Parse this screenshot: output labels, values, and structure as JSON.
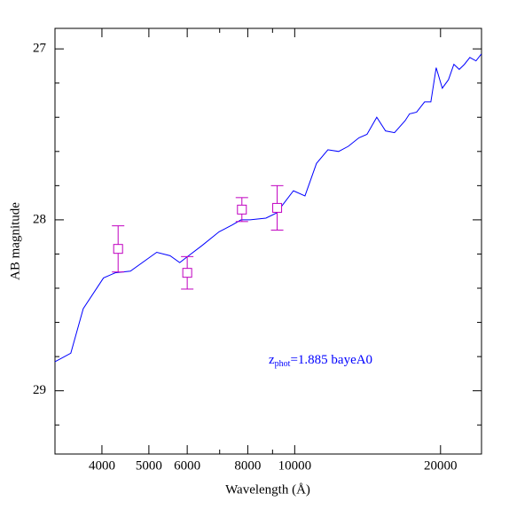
{
  "chart_data": {
    "type": "line",
    "xlabel": "Wavelength (Å)",
    "ylabel": "AB magnitude",
    "xscale": "log",
    "xlim": [
      3200,
      24300
    ],
    "ylim": [
      26.88,
      29.37
    ],
    "y_inverted": true,
    "xticks": [
      4000,
      5000,
      6000,
      8000,
      10000,
      20000
    ],
    "xminor_ticks": [
      7000,
      9000
    ],
    "yticks": [
      27,
      28,
      29
    ],
    "yminor_ticks": [
      27.2,
      27.4,
      27.6,
      27.8,
      28.2,
      28.4,
      28.6,
      28.8,
      29.2
    ],
    "annotation": {
      "text": "z",
      "sub": "phot",
      "rest": "=1.885 bayeA0",
      "color": "#0000ff"
    },
    "model": {
      "color": "#0000ff",
      "x": [
        3200,
        3450,
        3660,
        4030,
        4260,
        4580,
        5190,
        5530,
        5790,
        6040,
        6440,
        6980,
        7430,
        7750,
        8090,
        8720,
        9170,
        9940,
        10500,
        11090,
        11710,
        12320,
        12900,
        13570,
        14100,
        14770,
        15400,
        16070,
        16900,
        17260,
        17850,
        18540,
        19100,
        19590,
        20170,
        20770,
        21310,
        21860,
        22410,
        22990,
        23670,
        24280
      ],
      "values": [
        28.83,
        28.78,
        28.52,
        28.34,
        28.31,
        28.3,
        28.19,
        28.21,
        28.25,
        28.21,
        28.15,
        28.07,
        28.03,
        28.0,
        28.0,
        27.99,
        27.96,
        27.83,
        27.86,
        27.67,
        27.59,
        27.6,
        27.57,
        27.52,
        27.5,
        27.4,
        27.48,
        27.49,
        27.42,
        27.38,
        27.37,
        27.31,
        27.31,
        27.11,
        27.23,
        27.18,
        27.09,
        27.12,
        27.09,
        27.05,
        27.07,
        27.03
      ]
    },
    "photometry": {
      "color": "#c000c0",
      "x": [
        4320,
        6000,
        7780,
        9200
      ],
      "values": [
        28.17,
        28.31,
        27.94,
        27.93
      ],
      "errors": [
        0.135,
        0.095,
        0.07,
        0.13
      ]
    }
  }
}
